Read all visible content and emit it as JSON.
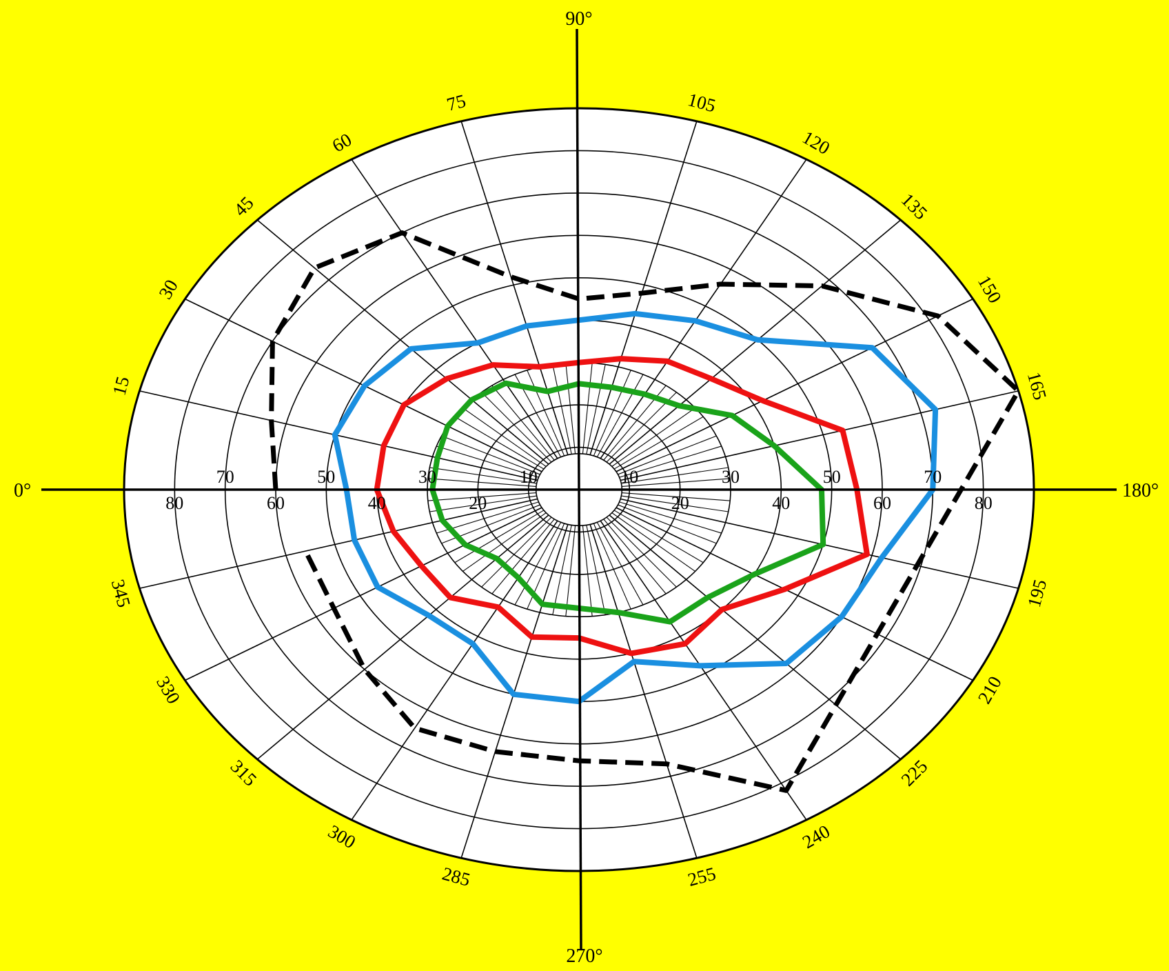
{
  "chart_data": {
    "type": "polar",
    "axis_end_labels": {
      "left": "0°",
      "top": "90°",
      "right": "180°",
      "bottom": "270°"
    },
    "meridian_labels": [
      {
        "angle": 15,
        "text": "15"
      },
      {
        "angle": 30,
        "text": "30"
      },
      {
        "angle": 45,
        "text": "45"
      },
      {
        "angle": 60,
        "text": "60"
      },
      {
        "angle": 75,
        "text": "75"
      },
      {
        "angle": 105,
        "text": "105"
      },
      {
        "angle": 120,
        "text": "120"
      },
      {
        "angle": 135,
        "text": "135"
      },
      {
        "angle": 150,
        "text": "150"
      },
      {
        "angle": 165,
        "text": "165"
      },
      {
        "angle": 195,
        "text": "195"
      },
      {
        "angle": 210,
        "text": "210"
      },
      {
        "angle": 225,
        "text": "225"
      },
      {
        "angle": 240,
        "text": "240"
      },
      {
        "angle": 255,
        "text": "255"
      },
      {
        "angle": 285,
        "text": "285"
      },
      {
        "angle": 300,
        "text": "300"
      },
      {
        "angle": 315,
        "text": "315"
      },
      {
        "angle": 330,
        "text": "330"
      },
      {
        "angle": 345,
        "text": "345"
      }
    ],
    "radial_range": [
      0,
      90
    ],
    "rings": [
      10,
      20,
      30,
      40,
      50,
      60,
      70,
      80,
      90
    ],
    "ring_labels_above": [
      "10",
      "30",
      "50",
      "70"
    ],
    "ring_labels_below": [
      "20",
      "40",
      "60",
      "80"
    ],
    "spoke_step_deg": 15,
    "series": [
      {
        "color": "#000000",
        "style": "dashed",
        "points": [
          [
            0,
            60
          ],
          [
            15,
            63
          ],
          [
            30,
            70
          ],
          [
            45,
            74
          ],
          [
            60,
            70
          ],
          [
            75,
            52
          ],
          [
            90,
            45
          ],
          [
            105,
            48
          ],
          [
            120,
            56
          ],
          [
            135,
            68
          ],
          [
            150,
            82
          ],
          [
            165,
            90
          ],
          [
            240,
            82
          ],
          [
            255,
            67
          ],
          [
            270,
            64
          ],
          [
            285,
            64
          ],
          [
            300,
            65
          ],
          [
            315,
            60
          ],
          [
            330,
            56
          ],
          [
            345,
            56
          ]
        ]
      },
      {
        "color": "#1a8fe0",
        "style": "solid",
        "points": [
          [
            0,
            46
          ],
          [
            15,
            50
          ],
          [
            30,
            49
          ],
          [
            45,
            47
          ],
          [
            60,
            40
          ],
          [
            75,
            40
          ],
          [
            90,
            40
          ],
          [
            105,
            43
          ],
          [
            120,
            46
          ],
          [
            135,
            50
          ],
          [
            150,
            67
          ],
          [
            165,
            73
          ],
          [
            180,
            70
          ],
          [
            195,
            62
          ],
          [
            210,
            60
          ],
          [
            225,
            58
          ],
          [
            240,
            48
          ],
          [
            255,
            42
          ],
          [
            270,
            50
          ],
          [
            285,
            50
          ],
          [
            300,
            42
          ],
          [
            315,
            42
          ],
          [
            330,
            46
          ],
          [
            345,
            46
          ]
        ]
      },
      {
        "color": "#ee1111",
        "style": "solid",
        "points": [
          [
            0,
            40
          ],
          [
            15,
            40
          ],
          [
            30,
            40
          ],
          [
            45,
            37
          ],
          [
            60,
            34
          ],
          [
            75,
            30
          ],
          [
            90,
            30
          ],
          [
            105,
            32
          ],
          [
            120,
            35
          ],
          [
            135,
            37
          ],
          [
            150,
            42
          ],
          [
            165,
            54
          ],
          [
            180,
            55
          ],
          [
            195,
            59
          ],
          [
            210,
            47
          ],
          [
            225,
            40
          ],
          [
            240,
            42
          ],
          [
            255,
            40
          ],
          [
            270,
            35
          ],
          [
            285,
            36
          ],
          [
            300,
            32
          ],
          [
            315,
            36
          ],
          [
            330,
            36
          ],
          [
            345,
            38
          ]
        ]
      },
      {
        "color": "#1aa31a",
        "style": "solid",
        "points": [
          [
            0,
            29
          ],
          [
            15,
            29
          ],
          [
            30,
            30
          ],
          [
            45,
            30
          ],
          [
            60,
            29
          ],
          [
            75,
            24
          ],
          [
            90,
            25
          ],
          [
            105,
            25
          ],
          [
            120,
            26
          ],
          [
            135,
            28
          ],
          [
            150,
            35
          ],
          [
            165,
            40
          ],
          [
            180,
            48
          ],
          [
            195,
            50
          ],
          [
            210,
            40
          ],
          [
            225,
            36
          ],
          [
            240,
            36
          ],
          [
            255,
            30
          ],
          [
            270,
            28
          ],
          [
            285,
            28
          ],
          [
            300,
            24
          ],
          [
            315,
            23
          ],
          [
            330,
            26
          ],
          [
            345,
            28
          ]
        ]
      }
    ]
  }
}
